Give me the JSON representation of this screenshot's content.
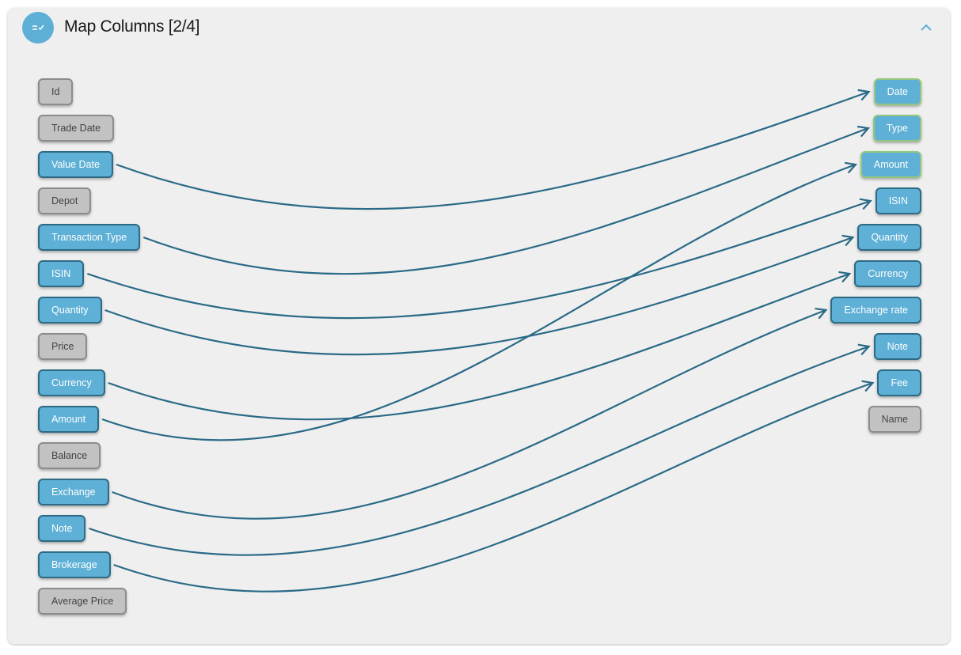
{
  "header": {
    "title": "Map Columns [2/4]"
  },
  "source_columns": [
    {
      "label": "Id",
      "active": false
    },
    {
      "label": "Trade Date",
      "active": false
    },
    {
      "label": "Value Date",
      "active": true
    },
    {
      "label": "Depot",
      "active": false
    },
    {
      "label": "Transaction Type",
      "active": true
    },
    {
      "label": "ISIN",
      "active": true
    },
    {
      "label": "Quantity",
      "active": true
    },
    {
      "label": "Price",
      "active": false
    },
    {
      "label": "Currency",
      "active": true
    },
    {
      "label": "Amount",
      "active": true
    },
    {
      "label": "Balance",
      "active": false
    },
    {
      "label": "Exchange",
      "active": true
    },
    {
      "label": "Note",
      "active": true
    },
    {
      "label": "Brokerage",
      "active": true
    },
    {
      "label": "Average Price",
      "active": false
    }
  ],
  "target_columns": [
    {
      "label": "Date",
      "active": true,
      "highlighted": true
    },
    {
      "label": "Type",
      "active": true,
      "highlighted": true
    },
    {
      "label": "Amount",
      "active": true,
      "highlighted": true
    },
    {
      "label": "ISIN",
      "active": true,
      "highlighted": false
    },
    {
      "label": "Quantity",
      "active": true,
      "highlighted": false
    },
    {
      "label": "Currency",
      "active": true,
      "highlighted": false
    },
    {
      "label": "Exchange rate",
      "active": true,
      "highlighted": false
    },
    {
      "label": "Note",
      "active": true,
      "highlighted": false
    },
    {
      "label": "Fee",
      "active": true,
      "highlighted": false
    },
    {
      "label": "Name",
      "active": false,
      "highlighted": false
    }
  ],
  "mappings": [
    {
      "from": 2,
      "to": 0
    },
    {
      "from": 4,
      "to": 1
    },
    {
      "from": 5,
      "to": 3
    },
    {
      "from": 6,
      "to": 4
    },
    {
      "from": 8,
      "to": 5
    },
    {
      "from": 9,
      "to": 2
    },
    {
      "from": 11,
      "to": 6
    },
    {
      "from": 12,
      "to": 7
    },
    {
      "from": 13,
      "to": 8
    }
  ]
}
